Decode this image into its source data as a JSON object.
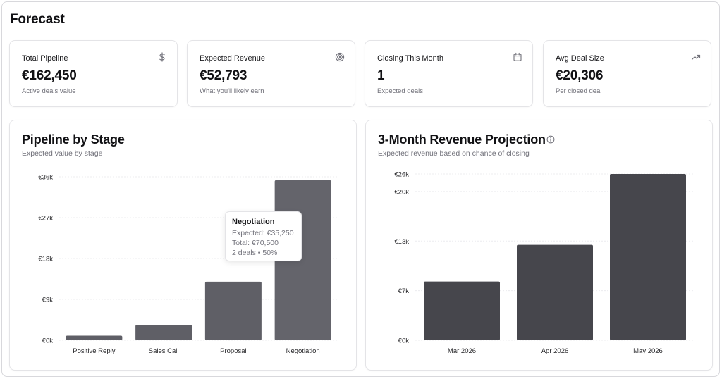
{
  "page": {
    "title": "Forecast"
  },
  "kpis": [
    {
      "label": "Total Pipeline",
      "value": "€162,450",
      "sub": "Active deals value",
      "icon": "dollar-icon"
    },
    {
      "label": "Expected Revenue",
      "value": "€52,793",
      "sub": "What you'll likely earn",
      "icon": "target-icon"
    },
    {
      "label": "Closing This Month",
      "value": "1",
      "sub": "Expected deals",
      "icon": "calendar-icon"
    },
    {
      "label": "Avg Deal Size",
      "value": "€20,306",
      "sub": "Per closed deal",
      "icon": "trending-up-icon"
    }
  ],
  "colors": {
    "bar_light": "#5f5f66",
    "bar_dark": "#46464c",
    "grid": "#ececef",
    "muted": "#71717a"
  },
  "tooltip": {
    "title": "Negotiation",
    "expected": "Expected: €35,250",
    "total": "Total: €70,500",
    "deals": "2 deals • 50%"
  },
  "chart_data": [
    {
      "type": "bar",
      "title": "Pipeline by Stage",
      "subtitle": "Expected value by stage",
      "categories": [
        "Positive Reply",
        "Sales Call",
        "Proposal",
        "Negotiation"
      ],
      "values": [
        1000,
        3400,
        12900,
        35250
      ],
      "ylim": [
        0,
        36000
      ],
      "yticks": [
        0,
        9000,
        18000,
        27000,
        36000
      ],
      "ytick_labels": [
        "€0k",
        "€9k",
        "€18k",
        "€27k",
        "€36k"
      ],
      "grid": true,
      "highlight": "Negotiation"
    },
    {
      "type": "bar",
      "title": "3-Month Revenue Projection",
      "subtitle": "Expected revenue based on chance of closing",
      "categories": [
        "Mar 2026",
        "Apr 2026",
        "May 2026"
      ],
      "values": [
        7700,
        12500,
        21800
      ],
      "ylim": [
        0,
        21800
      ],
      "yticks": [
        0,
        6500,
        13000,
        19500,
        26000
      ],
      "ytick_labels": [
        "€0k",
        "€7k",
        "€13k",
        "€20k",
        "€26k"
      ],
      "grid": true
    }
  ]
}
